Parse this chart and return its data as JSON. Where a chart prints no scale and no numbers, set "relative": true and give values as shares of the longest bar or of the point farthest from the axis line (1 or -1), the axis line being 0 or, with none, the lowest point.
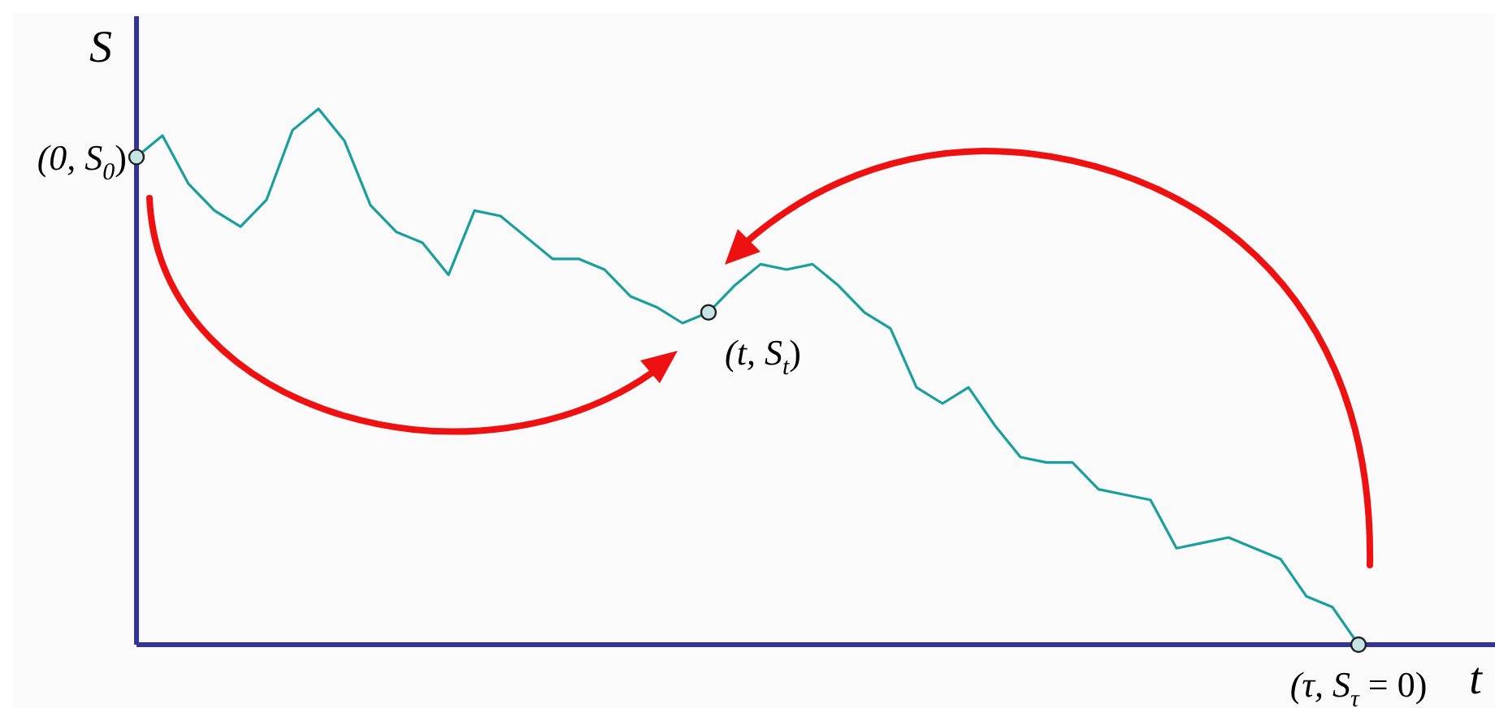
{
  "chart_data": {
    "type": "line",
    "relative": true,
    "xlabel": "t",
    "ylabel": "S",
    "categories": [
      null,
      null,
      null,
      null,
      null,
      null,
      null,
      null,
      null,
      null,
      null,
      null,
      null,
      null,
      null,
      null,
      null,
      null,
      null,
      null,
      null,
      null,
      null,
      null,
      null,
      null,
      null,
      null,
      null,
      null,
      null,
      null,
      null,
      null,
      null,
      null,
      null,
      null,
      null,
      null,
      null,
      null,
      null,
      null,
      null,
      null,
      null,
      null
    ],
    "series": [
      {
        "color": "#1a9e9e",
        "values": [
          0.91,
          0.95,
          0.86,
          0.81,
          0.78,
          0.83,
          0.96,
          1,
          0.94,
          0.82,
          0.77,
          0.75,
          0.69,
          0.81,
          0.8,
          0.76,
          0.72,
          0.72,
          0.7,
          0.65,
          0.63,
          0.6,
          0.62,
          0.67,
          0.71,
          0.7,
          0.71,
          0.67,
          0.62,
          0.59,
          0.48,
          0.45,
          0.48,
          0.41,
          0.35,
          0.34,
          0.34,
          0.29,
          0.28,
          0.27,
          0.18,
          0.19,
          0.2,
          0.18,
          0.16,
          0.09,
          0.07,
          0
        ]
      }
    ],
    "annotations": [
      "(0, S$_{0}$)",
      "(t, S$_{t}$)",
      "(τ, S$_{τ}$ = 0)"
    ]
  }
}
